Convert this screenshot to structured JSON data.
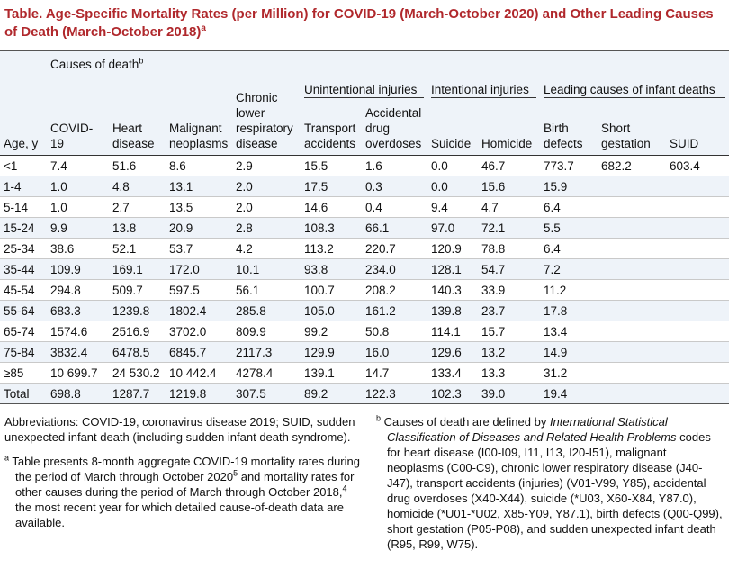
{
  "title": {
    "text": "Table. Age-Specific Mortality Rates (per Million) for COVID-19 (March-October 2020) and Other Leading Causes of Death (March-October 2018)",
    "sup": "a"
  },
  "header": {
    "causes_of_death": "Causes of death",
    "causes_sup": "b",
    "groups": {
      "unintentional": "Unintentional injuries",
      "intentional": "Intentional injuries",
      "infant": "Leading causes of infant deaths"
    },
    "columns": {
      "age": "Age, y",
      "covid": "COVID-19",
      "heart_1": "Heart",
      "heart_2": "disease",
      "malignant_1": "Malignant",
      "malignant_2": "neoplasms",
      "chronic_1": "Chronic",
      "chronic_2": "lower",
      "chronic_3": "respiratory",
      "chronic_4": "disease",
      "transport_1": "Transport",
      "transport_2": "accidents",
      "drug_1": "Accidental",
      "drug_2": "drug",
      "drug_3": "overdoses",
      "suicide": "Suicide",
      "homicide": "Homicide",
      "birth_1": "Birth",
      "birth_2": "defects",
      "gestation_1": "Short",
      "gestation_2": "gestation",
      "suid": "SUID"
    }
  },
  "rows": [
    [
      "<1",
      "7.4",
      "51.6",
      "8.6",
      "2.9",
      "15.5",
      "1.6",
      "0.0",
      "46.7",
      "773.7",
      "682.2",
      "603.4"
    ],
    [
      "1-4",
      "1.0",
      "4.8",
      "13.1",
      "2.0",
      "17.5",
      "0.3",
      "0.0",
      "15.6",
      "15.9",
      "",
      ""
    ],
    [
      "5-14",
      "1.0",
      "2.7",
      "13.5",
      "2.0",
      "14.6",
      "0.4",
      "9.4",
      "4.7",
      "6.4",
      "",
      ""
    ],
    [
      "15-24",
      "9.9",
      "13.8",
      "20.9",
      "2.8",
      "108.3",
      "66.1",
      "97.0",
      "72.1",
      "5.5",
      "",
      ""
    ],
    [
      "25-34",
      "38.6",
      "52.1",
      "53.7",
      "4.2",
      "113.2",
      "220.7",
      "120.9",
      "78.8",
      "6.4",
      "",
      ""
    ],
    [
      "35-44",
      "109.9",
      "169.1",
      "172.0",
      "10.1",
      "93.8",
      "234.0",
      "128.1",
      "54.7",
      "7.2",
      "",
      ""
    ],
    [
      "45-54",
      "294.8",
      "509.7",
      "597.5",
      "56.1",
      "100.7",
      "208.2",
      "140.3",
      "33.9",
      "11.2",
      "",
      ""
    ],
    [
      "55-64",
      "683.3",
      "1239.8",
      "1802.4",
      "285.8",
      "105.0",
      "161.2",
      "139.8",
      "23.7",
      "17.8",
      "",
      ""
    ],
    [
      "65-74",
      "1574.6",
      "2516.9",
      "3702.0",
      "809.9",
      "99.2",
      "50.8",
      "114.1",
      "15.7",
      "13.4",
      "",
      ""
    ],
    [
      "75-84",
      "3832.4",
      "6478.5",
      "6845.7",
      "2117.3",
      "129.9",
      "16.0",
      "129.6",
      "13.2",
      "14.9",
      "",
      ""
    ],
    [
      "≥85",
      "10 699.7",
      "24 530.2",
      "10 442.4",
      "4278.4",
      "139.1",
      "14.7",
      "133.4",
      "13.3",
      "31.2",
      "",
      ""
    ],
    [
      "Total",
      "698.8",
      "1287.7",
      "1219.8",
      "307.5",
      "89.2",
      "122.3",
      "102.3",
      "39.0",
      "19.4",
      "",
      ""
    ]
  ],
  "footnotes": {
    "abbreviations": "Abbreviations: COVID-19, coronavirus disease 2019; SUID, sudden unexpected infant death (including sudden infant death syndrome).",
    "a": {
      "marker": "a",
      "part1": "Table presents 8-month aggregate COVID-19 mortality rates during the period of March through October 2020",
      "ref1": "5",
      "part2": " and mortality rates for other causes during the period of March through October 2018,",
      "ref2": "4",
      "part3": " the most recent year for which detailed cause-of-death data are available."
    },
    "b": {
      "marker": "b",
      "part1": "Causes of death are defined by ",
      "italic": "International Statistical Classification of Diseases and Related Health Problems",
      "part2": " codes for heart disease (I00-I09, I11, I13, I20-I51), malignant neoplasms (C00-C9), chronic lower respiratory disease (J40-J47), transport accidents (injuries) (V01-V99, Y85), accidental drug overdoses (X40-X44), suicide (*U03, X60-X84, Y87.0), homicide (*U01-*U02, X85-Y09, Y87.1), birth defects (Q00-Q99), short gestation (P05-P08), and sudden unexpected infant death (R95, R99, W75)."
    }
  }
}
